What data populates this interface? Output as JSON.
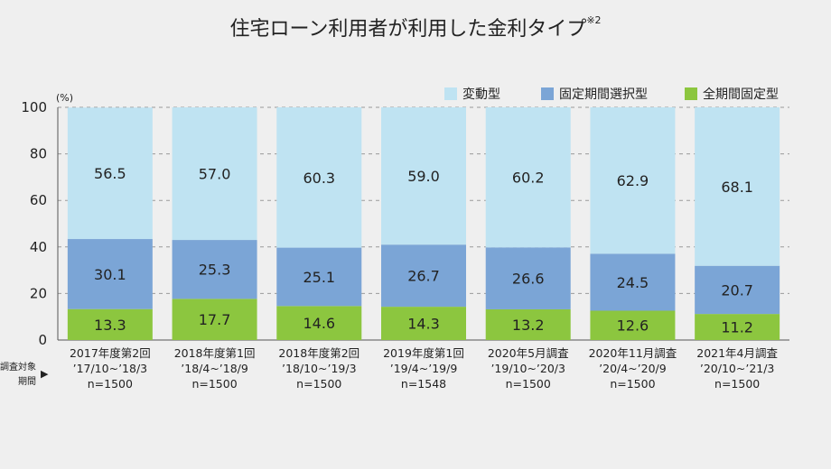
{
  "chart_data": {
    "type": "bar",
    "stacked": true,
    "title": "住宅ローン利用者が利用した金利タイプ",
    "title_note": "※2",
    "ylabel": "(%)",
    "ylim": [
      0,
      100
    ],
    "yticks": [
      0,
      20,
      40,
      60,
      80,
      100
    ],
    "grid": true,
    "legend_position": "top-right",
    "x_side_label": [
      "調査対象",
      "期間"
    ],
    "x_side_marker": "▶",
    "categories": [
      [
        "2017年度第2回",
        "’17/10~’18/3",
        "n=1500"
      ],
      [
        "2018年度第1回",
        "’18/4~’18/9",
        "n=1500"
      ],
      [
        "2018年度第2回",
        "’18/10~’19/3",
        "n=1500"
      ],
      [
        "2019年度第1回",
        "’19/4~’19/9",
        "n=1548"
      ],
      [
        "2020年5月調査",
        "’19/10~’20/3",
        "n=1500"
      ],
      [
        "2020年11月調査",
        "’20/4~’20/9",
        "n=1500"
      ],
      [
        "2021年4月調査",
        "’20/10~’21/3",
        "n=1500"
      ]
    ],
    "series": [
      {
        "name": "全期間固定型",
        "color": "#8cc63f",
        "values": [
          13.3,
          17.7,
          14.6,
          14.3,
          13.2,
          12.6,
          11.2
        ]
      },
      {
        "name": "固定期間選択型",
        "color": "#7ba5d6",
        "values": [
          30.1,
          25.3,
          25.1,
          26.7,
          26.6,
          24.5,
          20.7
        ]
      },
      {
        "name": "変動型",
        "color": "#bfe3f2",
        "values": [
          56.5,
          57.0,
          60.3,
          59.0,
          60.2,
          62.9,
          68.1
        ]
      }
    ],
    "legend_order": [
      "変動型",
      "固定期間選択型",
      "全期間固定型"
    ]
  }
}
